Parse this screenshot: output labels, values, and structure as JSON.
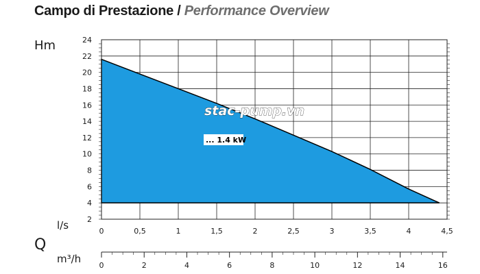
{
  "title": {
    "main": "Campo di Prestazione /",
    "sub": "Performance Overview"
  },
  "colors": {
    "fill": "#1e9be0",
    "grid": "#222222",
    "text": "#1a1a1a",
    "title_sub": "#6e6e6e"
  },
  "chart_data": {
    "type": "area",
    "ylabel": "Hm",
    "xlabel": "l/s",
    "secondary_axis_label": "m³/h",
    "q_symbol": "Q",
    "watermark": "stac-pump.vn",
    "grid": true,
    "ylim": [
      2,
      24
    ],
    "xlim": [
      0,
      4.5
    ],
    "y_ticks": [
      "2",
      "4",
      "6",
      "8",
      "10",
      "12",
      "14",
      "16",
      "18",
      "20",
      "22",
      "24"
    ],
    "x_ticks": [
      "0",
      "0,5",
      "1",
      "1,5",
      "2",
      "2,5",
      "3",
      "3,5",
      "4",
      "4,5"
    ],
    "m3h_ticks": [
      "0",
      "2",
      "4",
      "6",
      "8",
      "10",
      "12",
      "14",
      "16"
    ],
    "m3h_range": [
      0,
      16.2
    ],
    "series": [
      {
        "name": "... 1.4 kW",
        "x": [
          0,
          0.5,
          1,
          1.5,
          2,
          2.5,
          3,
          3.5,
          4,
          4.4
        ],
        "y": [
          21.6,
          19.8,
          18.0,
          16.2,
          14.3,
          12.3,
          10.3,
          8.1,
          5.7,
          4.0
        ],
        "base": 4
      }
    ]
  }
}
